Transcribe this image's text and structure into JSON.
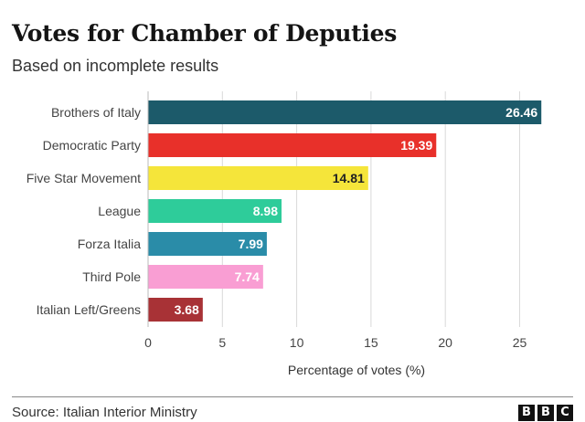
{
  "chart_data": {
    "type": "bar",
    "orientation": "horizontal",
    "title": "Votes for Chamber of Deputies",
    "subtitle": "Based on incomplete results",
    "categories": [
      "Brothers of Italy",
      "Democratic Party",
      "Five Star Movement",
      "League",
      "Forza Italia",
      "Third Pole",
      "Italian Left/Greens"
    ],
    "values": [
      26.46,
      19.39,
      14.81,
      8.98,
      7.99,
      7.74,
      3.68
    ],
    "value_labels": [
      "26.46",
      "19.39",
      "14.81",
      "8.98",
      "7.99",
      "7.74",
      "3.68"
    ],
    "colors": [
      "#1c5a6a",
      "#e8302a",
      "#f5e53a",
      "#2ecc9a",
      "#2a8ca8",
      "#f99ed3",
      "#a83236"
    ],
    "label_colors": [
      "#ffffff",
      "#ffffff",
      "#222222",
      "#ffffff",
      "#ffffff",
      "#ffffff",
      "#ffffff"
    ],
    "xlabel": "Percentage of votes (%)",
    "ylabel": "",
    "xlim": [
      0,
      27
    ],
    "xticks": [
      0,
      5,
      10,
      15,
      20,
      25
    ],
    "grid": true,
    "legend": "none"
  },
  "footer": {
    "source": "Source: Italian Interior Ministry",
    "logo_letters": [
      "B",
      "B",
      "C"
    ]
  }
}
